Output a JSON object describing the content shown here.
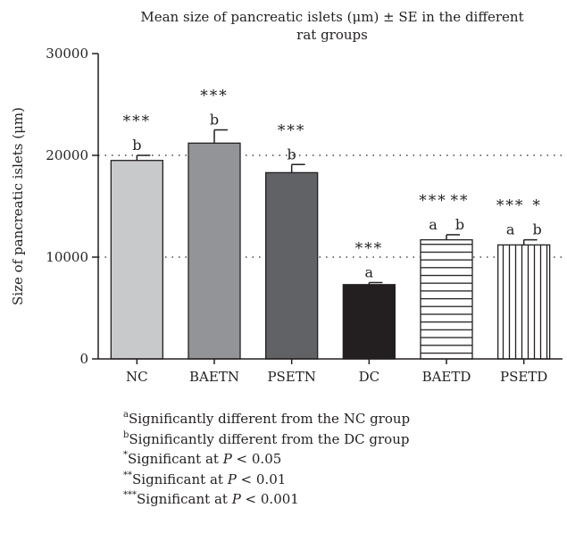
{
  "chart_data": {
    "type": "bar",
    "title_lines": [
      "Mean size of pancreatic islets (μm) ± SE in the different",
      "rat groups"
    ],
    "xlabel": "",
    "ylabel": "Size of pancreatic islets (μm)",
    "ylim": [
      0,
      30000
    ],
    "yticks": [
      0,
      10000,
      20000,
      30000
    ],
    "ytick_labels": [
      "0",
      "10000",
      "20000",
      "30000"
    ],
    "reference_lines": [
      10000,
      20000
    ],
    "categories": [
      "NC",
      "BAETN",
      "PSETN",
      "DC",
      "BAETD",
      "PSETD"
    ],
    "values": [
      19500,
      21200,
      18300,
      7300,
      11700,
      11200
    ],
    "errors": [
      500,
      1300,
      800,
      200,
      500,
      500
    ],
    "fills": [
      "solid-light-gray",
      "solid-mid-gray",
      "solid-dark-gray",
      "solid-black",
      "horizontal-stripes",
      "vertical-stripes"
    ],
    "colors": {
      "NC": "#c8c9cb",
      "BAETN": "#929497",
      "PSETN": "#616265",
      "DC": "#231f20",
      "stripe": "#231f20",
      "axis": "#231f20"
    },
    "annotations": [
      [
        [
          "***"
        ],
        [
          "b"
        ]
      ],
      [
        [
          "***"
        ],
        [
          "b"
        ]
      ],
      [
        [
          "***"
        ],
        [
          "b"
        ]
      ],
      [
        [
          "***"
        ],
        [
          "a"
        ]
      ],
      [
        [
          "***",
          "**"
        ],
        [
          "a",
          "b"
        ]
      ],
      [
        [
          "***",
          "*"
        ],
        [
          "a",
          "b"
        ]
      ]
    ]
  },
  "footnotes": [
    {
      "sup": "a",
      "text": "Significantly different from the NC group"
    },
    {
      "sup": "b",
      "text": "Significantly different from the DC group"
    },
    {
      "sup": "*",
      "text": "Significant at ",
      "italic": "P",
      "tail": " < 0.05"
    },
    {
      "sup": "**",
      "text": "Significant at ",
      "italic": "P",
      "tail": " < 0.01"
    },
    {
      "sup": "***",
      "text": "Significant at ",
      "italic": "P",
      "tail": " < 0.001"
    }
  ]
}
